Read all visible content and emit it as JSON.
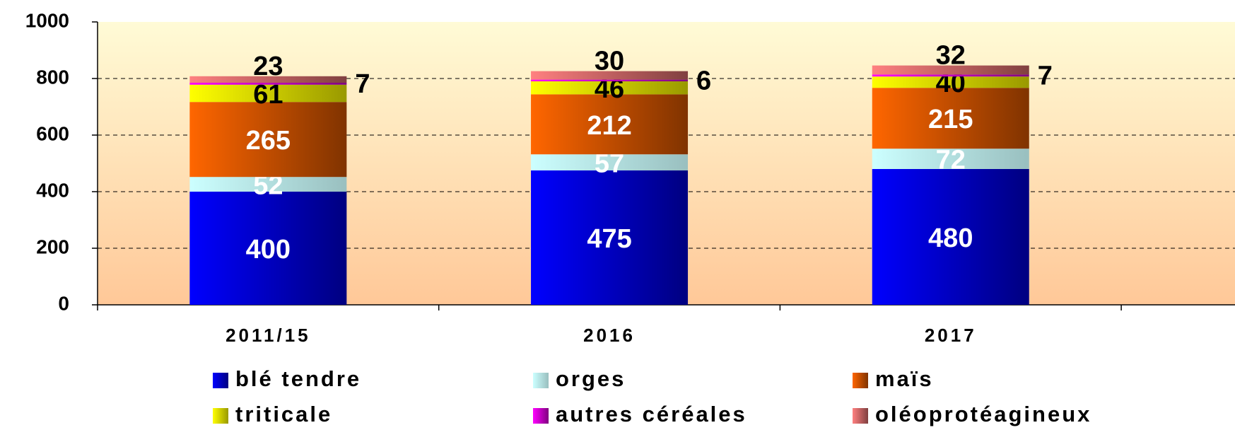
{
  "chart_data": {
    "type": "stacked_bar",
    "categories": [
      "2011/15",
      "2016",
      "2017"
    ],
    "series": [
      {
        "name": "blé tendre",
        "color": "#0000ff",
        "values": [
          400,
          475,
          480
        ]
      },
      {
        "name": "orges",
        "color": "#ccffff",
        "values": [
          52,
          57,
          72
        ]
      },
      {
        "name": "maïs",
        "color": "#ff6600",
        "values": [
          265,
          212,
          215
        ]
      },
      {
        "name": "triticale",
        "color": "#ffff00",
        "values": [
          61,
          46,
          40
        ]
      },
      {
        "name": "autres céréales",
        "color": "#ff00ff",
        "values": [
          7,
          6,
          7
        ]
      },
      {
        "name": "oléoprotéagineux",
        "color": "#ff8080",
        "values": [
          23,
          30,
          32
        ]
      }
    ],
    "ylim": [
      0,
      1000
    ],
    "yticks": [
      0,
      200,
      400,
      600,
      800,
      1000
    ],
    "grid": true
  }
}
